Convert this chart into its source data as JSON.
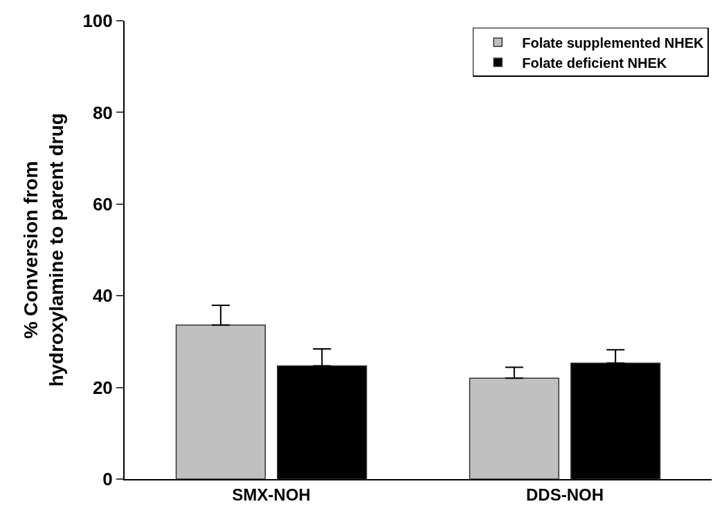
{
  "chart_data": {
    "type": "bar",
    "ylabel": "% Conversion from\nhydroxylamine to parent drug",
    "categories": [
      "SMX-NOH",
      "DDS-NOH"
    ],
    "series": [
      {
        "name": "Folate supplemented NHEK",
        "color": "#c0c0c0",
        "values": [
          33.6,
          22.0
        ],
        "errors": [
          4.3,
          2.4
        ]
      },
      {
        "name": "Folate deficient NHEK",
        "color": "#000000",
        "values": [
          24.7,
          25.3
        ],
        "errors": [
          3.7,
          2.9
        ]
      }
    ],
    "ylim": [
      0,
      100
    ],
    "yticks": [
      0,
      20,
      40,
      60,
      80,
      100
    ],
    "legend": "top right"
  }
}
